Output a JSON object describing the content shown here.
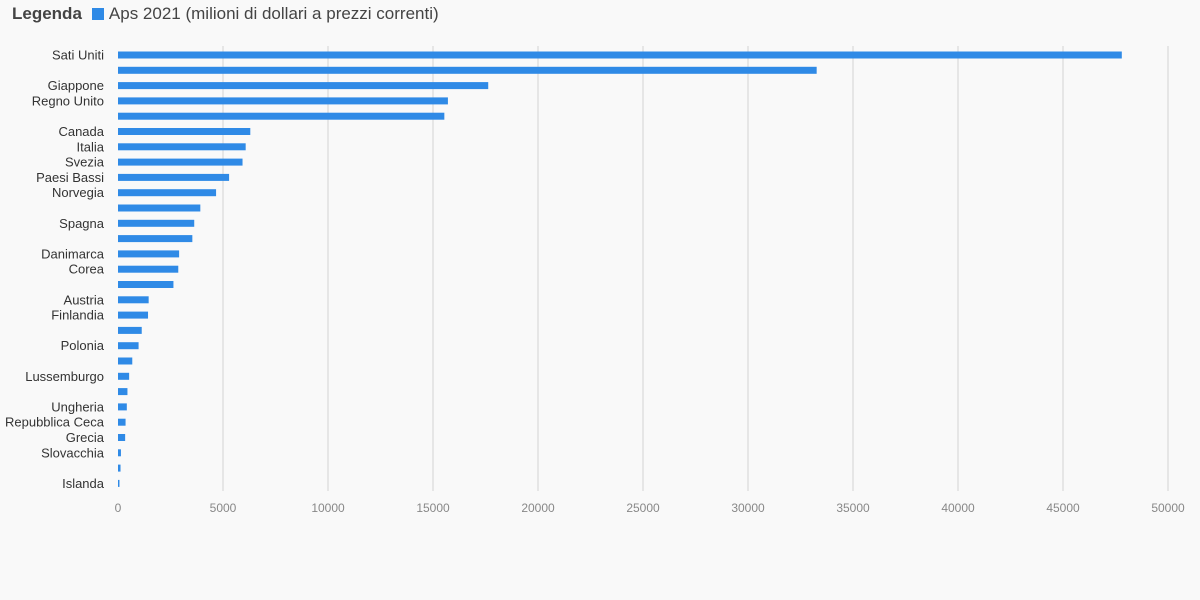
{
  "legend": {
    "title": "Legenda",
    "series_label": "Aps 2021 (milioni di dollari a prezzi correnti)"
  },
  "colors": {
    "bar": "#2f8ae6",
    "grid": "#e6e6e6",
    "background": "#f9f9f9"
  },
  "chart_data": {
    "type": "bar",
    "orientation": "horizontal",
    "title": "",
    "xlabel": "",
    "ylabel": "",
    "xlim": [
      0,
      50000
    ],
    "xticks": [
      0,
      5000,
      10000,
      15000,
      20000,
      25000,
      30000,
      35000,
      40000,
      45000,
      50000
    ],
    "grid": true,
    "legend_position": "top-left",
    "series": [
      {
        "name": "Aps 2021 (milioni di dollari a prezzi correnti)",
        "color": "#2f8ae6"
      }
    ],
    "categories": [
      "Sati Uniti",
      "",
      "Giappone",
      "Regno Unito",
      "",
      "Canada",
      "Italia",
      "Svezia",
      "Paesi Bassi",
      "Norvegia",
      "",
      "Spagna",
      "",
      "Danimarca",
      "Corea",
      "",
      "Austria",
      "Finlandia",
      "",
      "Polonia",
      "",
      "Lussemburgo",
      "",
      "Ungheria",
      "Repubblica Ceca",
      "Grecia",
      "Slovacchia",
      "",
      "Islanda"
    ],
    "values": [
      47800,
      33270,
      17630,
      15710,
      15540,
      6300,
      6080,
      5930,
      5290,
      4670,
      3920,
      3630,
      3540,
      2910,
      2870,
      2640,
      1460,
      1430,
      1130,
      980,
      680,
      530,
      450,
      420,
      360,
      340,
      140,
      120,
      70
    ]
  }
}
